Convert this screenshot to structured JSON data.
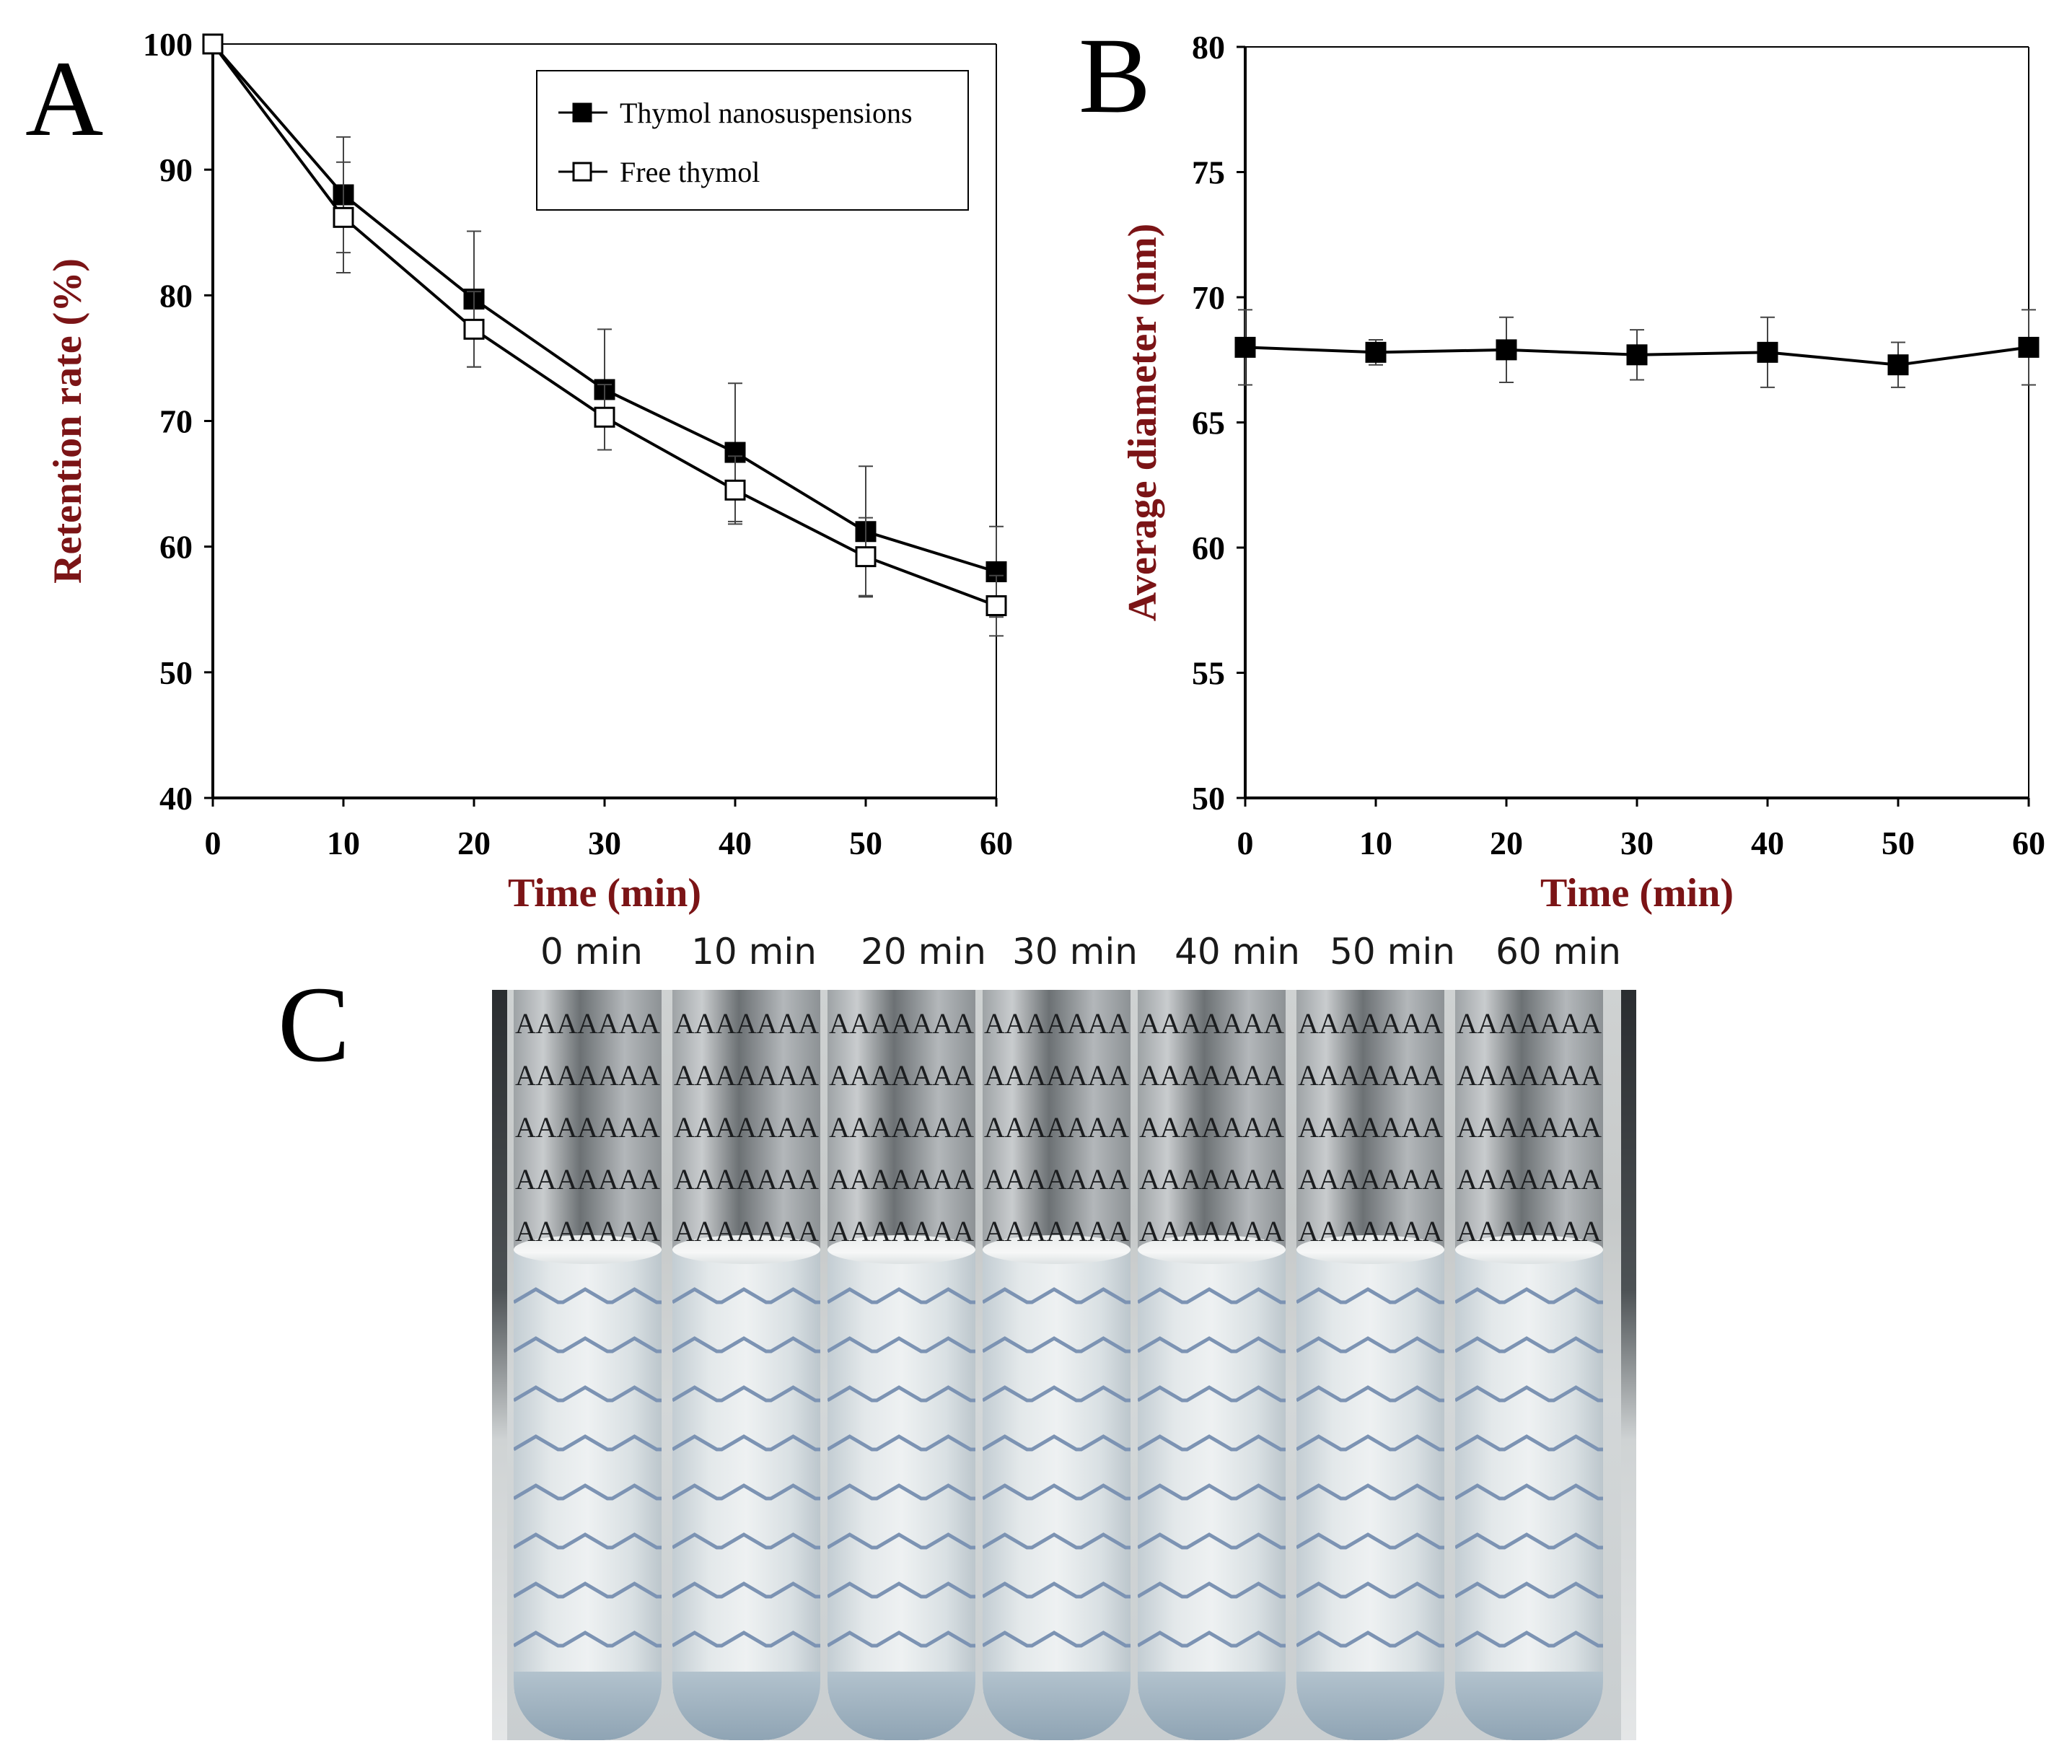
{
  "chart_data": [
    {
      "panel": "A",
      "type": "line",
      "xlabel": "Time (min)",
      "ylabel": "Retention rate (%)",
      "xlim": [
        0,
        60
      ],
      "ylim": [
        40,
        100
      ],
      "x": [
        0,
        10,
        20,
        30,
        40,
        50,
        60
      ],
      "xticks": [
        "0",
        "10",
        "20",
        "30",
        "40",
        "50",
        "60"
      ],
      "yticks": [
        "40",
        "50",
        "60",
        "70",
        "80",
        "90",
        "100"
      ],
      "legend": "top-right, boxed",
      "series": [
        {
          "name": "Thymol nanosuspensions",
          "marker": "filled-square",
          "values": [
            100,
            88.0,
            79.7,
            72.5,
            67.5,
            61.2,
            58.0
          ],
          "errors": [
            0,
            4.6,
            5.4,
            4.8,
            5.5,
            5.2,
            3.6
          ]
        },
        {
          "name": "Free thymol",
          "marker": "open-square",
          "values": [
            100,
            86.2,
            77.3,
            70.3,
            64.5,
            59.2,
            55.3
          ],
          "errors": [
            0,
            4.4,
            3.0,
            2.6,
            2.7,
            3.1,
            2.4
          ]
        }
      ]
    },
    {
      "panel": "B",
      "type": "line",
      "xlabel": "Time (min)",
      "ylabel": "Average diameter (nm)",
      "xlim": [
        0,
        60
      ],
      "ylim": [
        50,
        80
      ],
      "x": [
        0,
        10,
        20,
        30,
        40,
        50,
        60
      ],
      "xticks": [
        "0",
        "10",
        "20",
        "30",
        "40",
        "50",
        "60"
      ],
      "yticks": [
        "50",
        "55",
        "60",
        "65",
        "70",
        "75",
        "80"
      ],
      "series": [
        {
          "name": "Average diameter",
          "marker": "filled-square",
          "values": [
            68.0,
            67.8,
            67.9,
            67.7,
            67.8,
            67.3,
            68.0
          ],
          "errors": [
            1.5,
            0.5,
            1.3,
            1.0,
            1.4,
            0.9,
            1.5
          ]
        }
      ]
    }
  ],
  "figure": {
    "panel_letters": [
      "A",
      "B",
      "C"
    ],
    "tubes": [
      {
        "label": "0 min"
      },
      {
        "label": "10 min"
      },
      {
        "label": "20 min"
      },
      {
        "label": "30 min"
      },
      {
        "label": "40 min"
      },
      {
        "label": "50 min"
      },
      {
        "label": "60 min"
      }
    ],
    "background_letters": "AAAAAAA",
    "colors": {
      "axis_title": "#7b1416",
      "ink": "#000000"
    }
  }
}
